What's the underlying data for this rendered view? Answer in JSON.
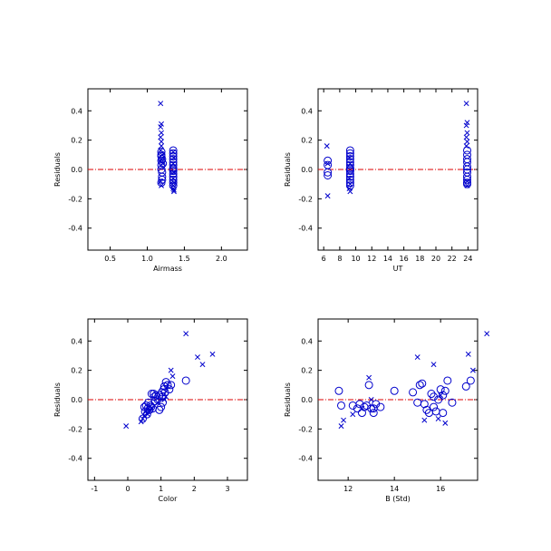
{
  "colors": {
    "points": "#0000cc",
    "reference_line": "#dd0000",
    "axes": "#000000"
  },
  "chart_data": [
    {
      "type": "scatter",
      "xlabel": "Airmass",
      "ylabel": "Residuals",
      "xlim": [
        0.2,
        2.35
      ],
      "ylim": [
        -0.55,
        0.55
      ],
      "xticks": [
        0.5,
        1.0,
        1.5,
        2.0
      ],
      "xtick_labels": [
        "0.5",
        "1.0",
        "1.5",
        "2.0"
      ],
      "yticks": [
        -0.4,
        -0.2,
        0.0,
        0.2,
        0.4
      ],
      "ytick_labels": [
        "-0.4",
        "-0.2",
        "0.0",
        "0.2",
        "0.4"
      ],
      "reference_line_y": 0.0,
      "series": [
        {
          "marker": "circle",
          "x": [
            1.19,
            1.19,
            1.19,
            1.19,
            1.19,
            1.2,
            1.2,
            1.2,
            1.19,
            1.19,
            1.2,
            1.21,
            1.35,
            1.35,
            1.35,
            1.35,
            1.35,
            1.35,
            1.35,
            1.35,
            1.35,
            1.35,
            1.35,
            1.35,
            1.35,
            1.35
          ],
          "y": [
            0.12,
            0.09,
            0.06,
            0.03,
            0.0,
            -0.02,
            -0.05,
            -0.07,
            -0.09,
            0.1,
            0.07,
            0.04,
            0.13,
            0.11,
            0.09,
            0.07,
            0.05,
            0.03,
            0.01,
            -0.01,
            -0.03,
            -0.05,
            -0.07,
            -0.09,
            -0.11,
            0.0
          ]
        },
        {
          "marker": "x",
          "x": [
            1.18,
            1.19,
            1.18,
            1.19,
            1.18,
            1.19,
            1.19,
            1.18,
            1.2,
            1.19,
            1.21,
            1.18,
            1.19,
            1.35,
            1.36,
            1.35,
            1.36,
            1.35,
            1.36,
            1.35,
            1.36,
            1.35,
            1.36
          ],
          "y": [
            0.45,
            0.31,
            0.29,
            0.25,
            0.22,
            0.19,
            0.16,
            0.13,
            0.1,
            0.07,
            0.04,
            -0.08,
            -0.11,
            -0.13,
            -0.15,
            -0.11,
            0.08,
            0.04,
            -0.02,
            -0.06,
            -0.09,
            0.12,
            -0.14
          ]
        }
      ]
    },
    {
      "type": "scatter",
      "xlabel": "UT",
      "ylabel": "Residuals",
      "xlim": [
        5.3,
        25.2
      ],
      "ylim": [
        -0.55,
        0.55
      ],
      "xticks": [
        6,
        8,
        10,
        12,
        14,
        16,
        18,
        20,
        22,
        24
      ],
      "xtick_labels": [
        "6",
        "8",
        "10",
        "12",
        "14",
        "16",
        "18",
        "20",
        "22",
        "24"
      ],
      "yticks": [
        -0.4,
        -0.2,
        0.0,
        0.2,
        0.4
      ],
      "ytick_labels": [
        "-0.4",
        "-0.2",
        "0.0",
        "0.2",
        "0.4"
      ],
      "reference_line_y": 0.0,
      "series": [
        {
          "marker": "circle",
          "x": [
            6.5,
            6.5,
            6.5,
            6.5,
            9.3,
            9.3,
            9.3,
            9.3,
            9.3,
            9.3,
            9.3,
            9.3,
            9.3,
            9.3,
            9.3,
            9.3,
            9.3,
            9.3,
            23.9,
            23.9,
            23.9,
            23.9,
            23.9,
            23.9,
            23.9,
            23.9,
            23.9,
            23.9,
            23.9
          ],
          "y": [
            0.06,
            0.03,
            -0.02,
            -0.04,
            0.13,
            0.11,
            0.09,
            0.07,
            0.05,
            0.03,
            0.01,
            -0.01,
            -0.03,
            -0.05,
            -0.07,
            -0.09,
            -0.11,
            0.0,
            0.13,
            0.1,
            0.07,
            0.05,
            0.02,
            0.0,
            -0.02,
            -0.05,
            -0.07,
            -0.09,
            -0.1
          ]
        },
        {
          "marker": "x",
          "x": [
            6.4,
            6.5,
            6.5,
            9.2,
            9.3,
            9.2,
            9.3,
            9.2,
            9.3,
            23.8,
            23.9,
            23.8,
            23.9,
            23.8,
            23.9,
            23.8,
            23.9,
            23.9
          ],
          "y": [
            0.16,
            -0.18,
            0.04,
            0.08,
            0.04,
            -0.06,
            -0.1,
            -0.13,
            -0.15,
            0.45,
            0.32,
            0.3,
            0.25,
            0.22,
            0.19,
            0.16,
            -0.08,
            -0.11
          ]
        }
      ]
    },
    {
      "type": "scatter",
      "xlabel": "Color",
      "ylabel": "Residuals",
      "xlim": [
        -1.2,
        3.6
      ],
      "ylim": [
        -0.55,
        0.55
      ],
      "xticks": [
        -1,
        0,
        1,
        2,
        3
      ],
      "xtick_labels": [
        "-1",
        "0",
        "1",
        "2",
        "3"
      ],
      "yticks": [
        -0.4,
        -0.2,
        0.0,
        0.2,
        0.4
      ],
      "ytick_labels": [
        "-0.4",
        "-0.2",
        "0.0",
        "0.2",
        "0.4"
      ],
      "reference_line_y": 0.0,
      "series": [
        {
          "marker": "circle",
          "x": [
            0.45,
            0.5,
            0.52,
            0.55,
            0.58,
            0.6,
            0.62,
            0.65,
            0.68,
            0.7,
            0.72,
            0.75,
            0.8,
            0.82,
            0.85,
            0.9,
            0.95,
            1.0,
            1.02,
            1.05,
            1.08,
            1.1,
            1.12,
            1.15,
            1.2,
            1.25,
            1.3,
            1.75,
            0.78,
            0.95,
            1.05
          ],
          "y": [
            -0.13,
            -0.05,
            -0.08,
            -0.04,
            -0.1,
            -0.06,
            -0.02,
            -0.07,
            -0.04,
            -0.05,
            0.04,
            -0.06,
            0.02,
            -0.01,
            0.03,
            0.0,
            -0.07,
            -0.05,
            0.05,
            0.02,
            0.07,
            0.09,
            0.05,
            0.12,
            0.1,
            0.07,
            0.1,
            0.13,
            0.04,
            0.03,
            -0.02
          ]
        },
        {
          "marker": "x",
          "x": [
            -0.05,
            0.4,
            0.45,
            0.5,
            0.55,
            0.6,
            0.7,
            0.9,
            1.1,
            1.15,
            1.3,
            1.35,
            1.75,
            2.1,
            2.25,
            2.55
          ],
          "y": [
            -0.18,
            -0.15,
            -0.13,
            -0.11,
            -0.08,
            -0.1,
            -0.06,
            -0.02,
            0.0,
            0.02,
            0.2,
            0.16,
            0.45,
            0.29,
            0.24,
            0.31
          ]
        }
      ]
    },
    {
      "type": "scatter",
      "xlabel": "B (Std)",
      "ylabel": "Residuals",
      "xlim": [
        10.7,
        17.6
      ],
      "ylim": [
        -0.55,
        0.55
      ],
      "xticks": [
        12,
        14,
        16
      ],
      "xtick_labels": [
        "12",
        "14",
        "16"
      ],
      "yticks": [
        -0.4,
        -0.2,
        0.0,
        0.2,
        0.4
      ],
      "ytick_labels": [
        "-0.4",
        "-0.2",
        "0.0",
        "0.2",
        "0.4"
      ],
      "reference_line_y": 0.0,
      "series": [
        {
          "marker": "circle",
          "x": [
            11.6,
            11.7,
            12.2,
            12.4,
            12.6,
            12.7,
            12.9,
            13.0,
            13.1,
            13.2,
            13.4,
            14.0,
            14.8,
            15.1,
            15.2,
            15.3,
            15.4,
            15.5,
            15.6,
            15.7,
            15.8,
            15.9,
            16.0,
            16.1,
            16.2,
            16.3,
            16.5,
            17.1,
            17.3,
            12.5,
            12.8,
            13.1,
            15.0,
            15.7,
            16.1
          ],
          "y": [
            0.06,
            -0.04,
            -0.04,
            -0.06,
            -0.09,
            -0.05,
            0.1,
            -0.06,
            -0.09,
            -0.03,
            -0.05,
            0.06,
            0.05,
            0.1,
            0.11,
            -0.03,
            -0.07,
            -0.09,
            0.04,
            -0.05,
            -0.08,
            0.0,
            0.07,
            0.03,
            0.06,
            0.13,
            -0.02,
            0.09,
            0.13,
            -0.03,
            -0.04,
            -0.06,
            -0.02,
            0.02,
            -0.09
          ]
        },
        {
          "marker": "x",
          "x": [
            11.7,
            11.8,
            12.2,
            12.6,
            12.9,
            13.0,
            15.0,
            15.3,
            15.7,
            15.9,
            16.0,
            16.2,
            17.2,
            17.4,
            18.0
          ],
          "y": [
            -0.18,
            -0.14,
            -0.1,
            -0.06,
            0.15,
            0.0,
            0.29,
            -0.14,
            0.24,
            -0.13,
            0.03,
            -0.16,
            0.31,
            0.2,
            0.45
          ]
        }
      ]
    }
  ]
}
